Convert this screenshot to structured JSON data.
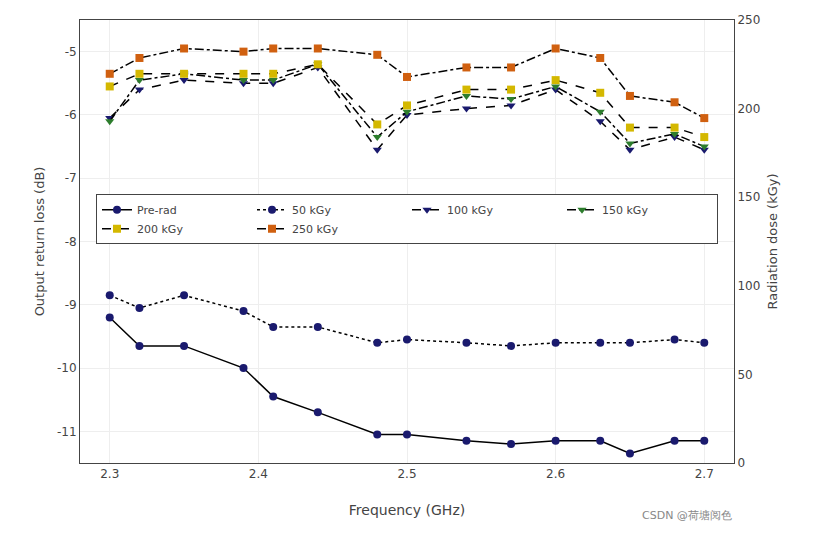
{
  "chart_data": {
    "type": "line",
    "x": [
      2.3,
      2.32,
      2.35,
      2.39,
      2.41,
      2.44,
      2.48,
      2.5,
      2.54,
      2.57,
      2.6,
      2.63,
      2.65,
      2.68,
      2.7
    ],
    "color": "#000000",
    "series": [
      {
        "name": "Pre-rad",
        "color": "#1a1a6e",
        "marker": "circle",
        "line_style": "solid",
        "values": [
          -9.2,
          -9.65,
          -9.65,
          -10.0,
          -10.45,
          -10.7,
          -11.05,
          -11.05,
          -11.15,
          -11.2,
          -11.15,
          -11.15,
          -11.35,
          -11.15,
          -11.15
        ]
      },
      {
        "name": "50 kGy",
        "color": "#1a1a6e",
        "marker": "circle",
        "line_style": "dot",
        "values": [
          -8.85,
          -9.05,
          -8.85,
          -9.1,
          -9.35,
          -9.35,
          -9.6,
          -9.55,
          -9.6,
          -9.65,
          -9.6,
          -9.6,
          -9.6,
          -9.55,
          -9.6
        ]
      },
      {
        "name": "100 kGy",
        "color": "#1a1a6e",
        "marker": "triangle-down",
        "line_style": "dash",
        "values": [
          -6.05,
          -5.6,
          -5.45,
          -5.5,
          -5.5,
          -5.25,
          -6.55,
          -6.0,
          -5.9,
          -5.85,
          -5.6,
          -6.1,
          -6.55,
          -6.35,
          -6.55
        ]
      },
      {
        "name": "150 kGy",
        "color": "#2d7d2d",
        "marker": "triangle-down",
        "line_style": "dashdot",
        "values": [
          -6.1,
          -5.45,
          -5.35,
          -5.45,
          -5.45,
          -5.2,
          -6.35,
          -5.95,
          -5.7,
          -5.75,
          -5.55,
          -5.95,
          -6.45,
          -6.3,
          -6.5
        ]
      },
      {
        "name": "200 kGy",
        "color": "#d4b800",
        "marker": "square",
        "line_style": "dash",
        "values": [
          -5.55,
          -5.35,
          -5.35,
          -5.35,
          -5.35,
          -5.2,
          -6.15,
          -5.85,
          -5.6,
          -5.6,
          -5.45,
          -5.65,
          -6.2,
          -6.2,
          -6.35
        ]
      },
      {
        "name": "250 kGy",
        "color": "#d06010",
        "marker": "square",
        "line_style": "dashdot",
        "values": [
          -5.35,
          -5.1,
          -4.95,
          -5.0,
          -4.95,
          -4.95,
          -5.05,
          -5.4,
          -5.25,
          -5.25,
          -4.95,
          -5.1,
          -5.7,
          -5.8,
          -6.05
        ]
      }
    ],
    "x_label": "Frequency (GHz)",
    "y_label": "Output return loss (dB)",
    "y2_label": "Radiation dose (kGy)",
    "xlim": [
      2.28,
      2.72
    ],
    "xticks": [
      2.3,
      2.4,
      2.5,
      2.6,
      2.7
    ],
    "ylim": [
      -11.5,
      -4.5
    ],
    "yticks": [
      -11,
      -10,
      -9,
      -8,
      -7,
      -6,
      -5
    ],
    "y2lim": [
      0,
      250
    ],
    "y2ticks": [
      0,
      50,
      100,
      150,
      200,
      250
    ],
    "grid": true,
    "legend": "center",
    "annotations": [
      {
        "text": "CSDN @荷塘阅色"
      }
    ]
  }
}
